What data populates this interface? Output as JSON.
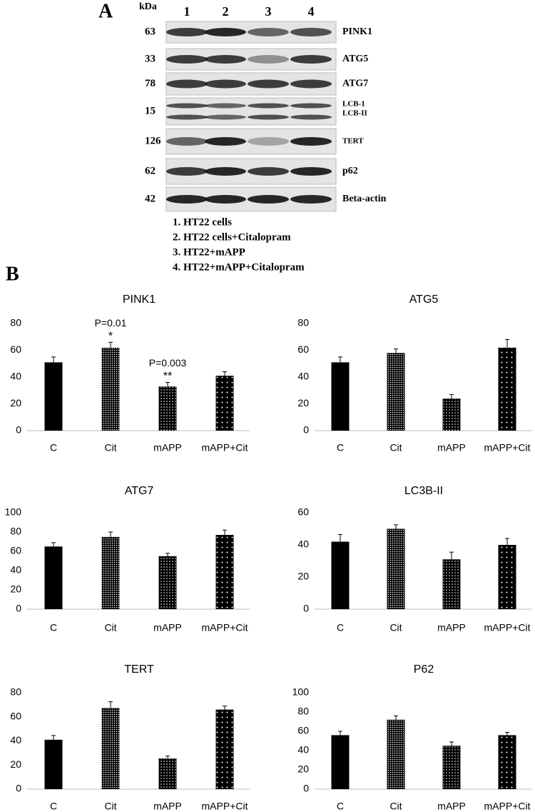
{
  "panel_a": {
    "label": "A",
    "kda_label": "kDa",
    "lanes": [
      "1",
      "2",
      "3",
      "4"
    ],
    "rows": [
      {
        "kda": 63,
        "labels": [
          "PINK1"
        ]
      },
      {
        "kda": 33,
        "labels": [
          "ATG5"
        ]
      },
      {
        "kda": 78,
        "labels": [
          "ATG7"
        ]
      },
      {
        "kda": 15,
        "labels": [
          "LCB-1",
          "LCB-II"
        ]
      },
      {
        "kda": 126,
        "labels": [
          "TERT"
        ]
      },
      {
        "kda": 62,
        "labels": [
          "p62"
        ]
      },
      {
        "kda": 42,
        "labels": [
          "Beta-actin"
        ]
      }
    ],
    "legend": [
      "1. HT22 cells",
      "2. HT22 cells+Citalopram",
      "3. HT22+mAPP",
      "4. HT22+mAPP+Citalopram"
    ]
  },
  "panel_b": {
    "label": "B"
  },
  "chart_data": [
    {
      "type": "bar",
      "title": "PINK1",
      "categories": [
        "C",
        "Cit",
        "mAPP",
        "mAPP+Cit"
      ],
      "values": [
        51,
        62,
        33,
        41
      ],
      "errors": [
        4,
        4,
        3,
        3
      ],
      "color": "#000000",
      "ylim": [
        0,
        80
      ],
      "yticks": [
        0,
        20,
        40,
        60,
        80
      ],
      "p_values": [
        null,
        "P=0.01",
        "P=0.003",
        null
      ],
      "significance": [
        null,
        "*",
        "**",
        null
      ]
    },
    {
      "type": "bar",
      "title": "ATG5",
      "categories": [
        "C",
        "Cit",
        "mAPP",
        "mAPP+Cit"
      ],
      "values": [
        51,
        58,
        24,
        62
      ],
      "errors": [
        4,
        3,
        3,
        6
      ],
      "color": "#000000",
      "ylim": [
        0,
        80
      ],
      "yticks": [
        0,
        20,
        40,
        60,
        80
      ]
    },
    {
      "type": "bar",
      "title": "ATG7",
      "categories": [
        "C",
        "Cit",
        "mAPP",
        "mAPP+Cit"
      ],
      "values": [
        65,
        75,
        55,
        77
      ],
      "errors": [
        4,
        5,
        3,
        5
      ],
      "color": "#000000",
      "ylim": [
        0,
        100
      ],
      "yticks": [
        0,
        20,
        40,
        60,
        80,
        100
      ]
    },
    {
      "type": "bar",
      "title": "LC3B-II",
      "categories": [
        "C",
        "Cit",
        "mAPP",
        "mAPP+Cit"
      ],
      "values": [
        42,
        50,
        31,
        40
      ],
      "errors": [
        4.5,
        2.5,
        4.5,
        4
      ],
      "color": "#000000",
      "ylim": [
        0,
        60
      ],
      "yticks": [
        0,
        20,
        40,
        60
      ]
    },
    {
      "type": "bar",
      "title": "TERT",
      "categories": [
        "C",
        "Cit",
        "mAPP",
        "mAPP+Cit"
      ],
      "values": [
        41,
        67.5,
        25.5,
        66
      ],
      "errors": [
        3.5,
        5,
        2,
        3
      ],
      "color": "#000000",
      "ylim": [
        0,
        80
      ],
      "yticks": [
        0,
        20,
        40,
        60,
        80
      ]
    },
    {
      "type": "bar",
      "title": "P62",
      "categories": [
        "C",
        "Cit",
        "mAPP",
        "mAPP+Cit"
      ],
      "values": [
        56,
        72,
        45,
        56
      ],
      "errors": [
        4,
        4,
        4,
        3
      ],
      "color": "#000000",
      "ylim": [
        0,
        100
      ],
      "yticks": [
        0,
        20,
        40,
        60,
        80,
        100
      ]
    }
  ]
}
